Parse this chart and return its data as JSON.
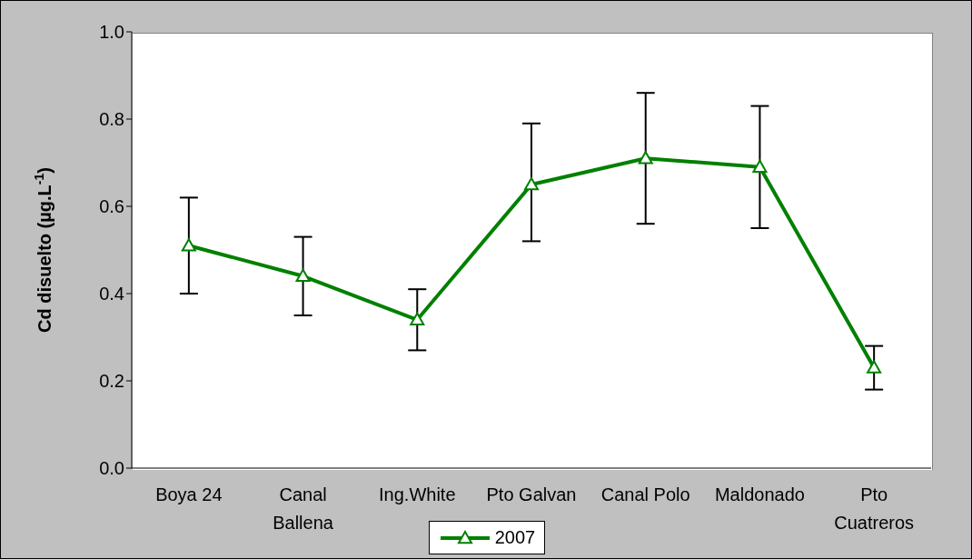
{
  "chart_data": {
    "type": "line",
    "ylabel": "Cd disuelto (µg.L$^{-1}$)",
    "categories": [
      "Boya 24",
      "Canal Ballena",
      "Ing.White",
      "Pto Galvan",
      "Canal Polo",
      "Maldonado",
      "Pto Cuatreros"
    ],
    "series": [
      {
        "name": "2007",
        "color": "#008000",
        "values": [
          0.51,
          0.44,
          0.34,
          0.65,
          0.71,
          0.69,
          0.23
        ],
        "errors": [
          [
            0.4,
            0.62
          ],
          [
            0.35,
            0.53
          ],
          [
            0.27,
            0.41
          ],
          [
            0.52,
            0.79
          ],
          [
            0.56,
            0.86
          ],
          [
            0.55,
            0.83
          ],
          [
            0.18,
            0.28
          ]
        ]
      }
    ],
    "ylim": [
      0,
      1
    ],
    "yticks": [
      {
        "value": 0,
        "label": "0.0"
      },
      0.2,
      0.4,
      0.6,
      0.8,
      {
        "value": 1,
        "label": "1.0"
      }
    ],
    "grid": false,
    "legend": "bottom",
    "marker": "triangle",
    "line_style": "solid"
  }
}
